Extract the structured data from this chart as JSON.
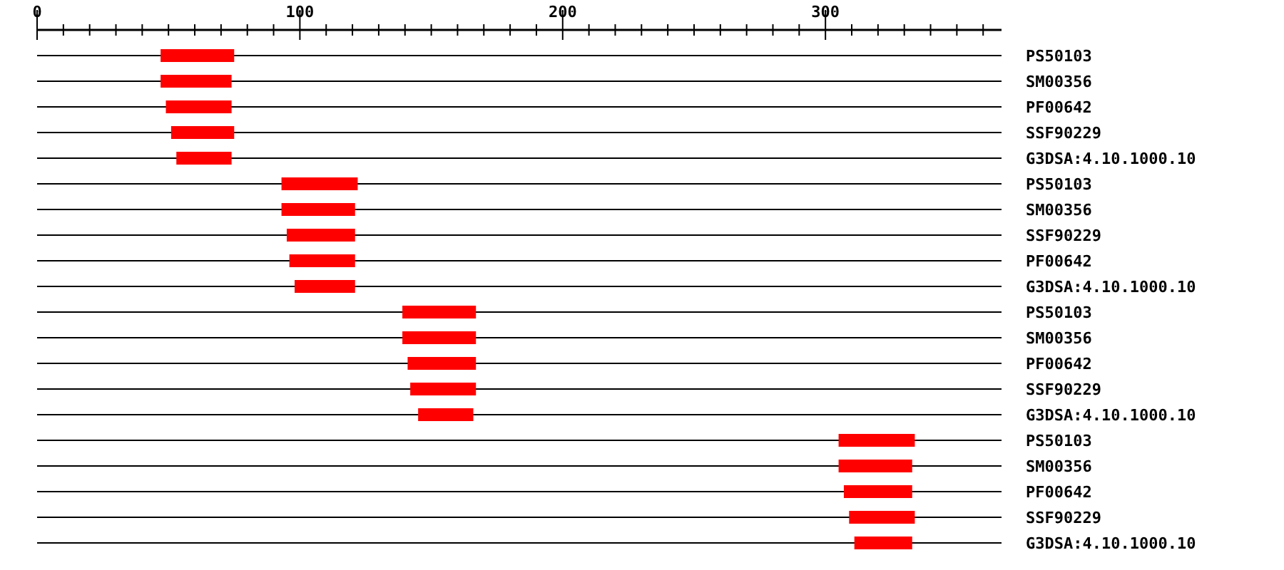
{
  "chart_data": {
    "type": "bar",
    "orientation": "horizontal",
    "color": "#ff0000",
    "grid": "y",
    "categories": [
      "PS50103",
      "SM00356",
      "PF00642",
      "SSF90229",
      "G3DSA:4.10.1000.10",
      "PS50103",
      "SM00356",
      "SSF90229",
      "PF00642",
      "G3DSA:4.10.1000.10",
      "PS50103",
      "SM00356",
      "PF00642",
      "SSF90229",
      "G3DSA:4.10.1000.10",
      "PS50103",
      "SM00356",
      "PF00642",
      "SSF90229",
      "G3DSA:4.10.1000.10"
    ],
    "base": [
      47,
      47,
      49,
      51,
      53,
      93,
      93,
      95,
      96,
      98,
      139,
      139,
      141,
      142,
      145,
      305,
      305,
      307,
      309,
      311
    ],
    "values": [
      28,
      27,
      25,
      24,
      21,
      29,
      28,
      26,
      25,
      23,
      28,
      28,
      26,
      25,
      21,
      29,
      28,
      26,
      25,
      22
    ],
    "xlim": [
      0,
      367
    ],
    "xticks": [
      0,
      {
        "value": 10,
        "label": null
      },
      {
        "value": 20,
        "label": null
      },
      {
        "value": 30,
        "label": null
      },
      {
        "value": 40,
        "label": null
      },
      {
        "value": 50,
        "label": null
      },
      {
        "value": 60,
        "label": null
      },
      {
        "value": 70,
        "label": null
      },
      {
        "value": 80,
        "label": null
      },
      {
        "value": 90,
        "label": null
      },
      100,
      {
        "value": 110,
        "label": null
      },
      {
        "value": 120,
        "label": null
      },
      {
        "value": 130,
        "label": null
      },
      {
        "value": 140,
        "label": null
      },
      {
        "value": 150,
        "label": null
      },
      {
        "value": 160,
        "label": null
      },
      {
        "value": 170,
        "label": null
      },
      {
        "value": 180,
        "label": null
      },
      {
        "value": 190,
        "label": null
      },
      200,
      {
        "value": 210,
        "label": null
      },
      {
        "value": 220,
        "label": null
      },
      {
        "value": 230,
        "label": null
      },
      {
        "value": 240,
        "label": null
      },
      {
        "value": 250,
        "label": null
      },
      {
        "value": 260,
        "label": null
      },
      {
        "value": 270,
        "label": null
      },
      {
        "value": 280,
        "label": null
      },
      {
        "value": 290,
        "label": null
      },
      300,
      {
        "value": 310,
        "label": null
      },
      {
        "value": 320,
        "label": null
      },
      {
        "value": 330,
        "label": null
      },
      {
        "value": 340,
        "label": null
      },
      {
        "value": 350,
        "label": null
      },
      {
        "value": 360,
        "label": null
      }
    ]
  }
}
